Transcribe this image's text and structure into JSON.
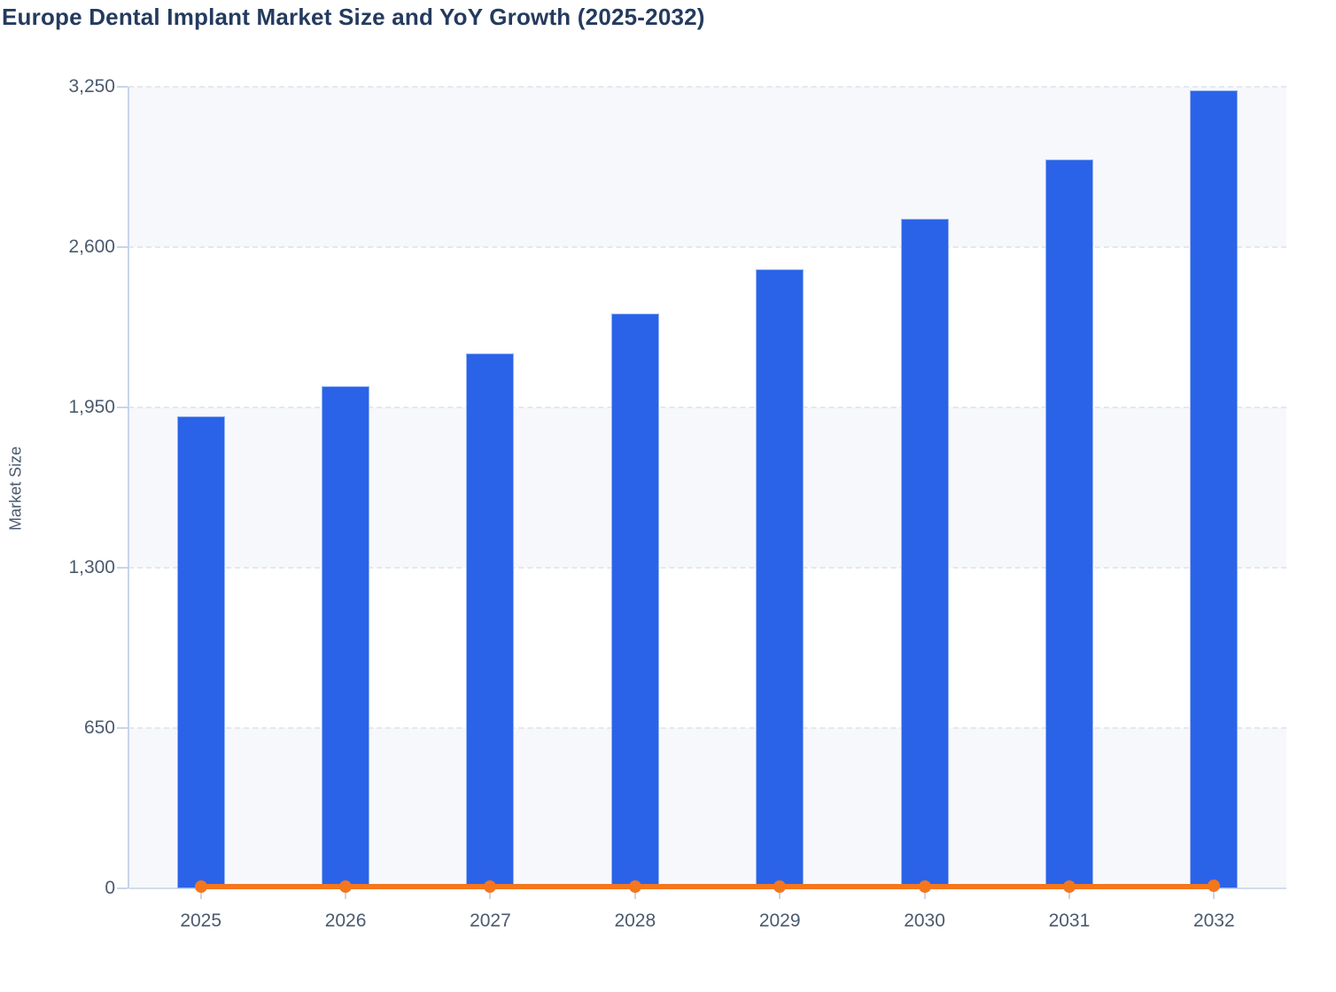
{
  "title": "Europe Dental Implant Market Size and YoY Growth (2025-2032)",
  "chart_data": {
    "type": "combo",
    "categories": [
      "2025",
      "2026",
      "2027",
      "2028",
      "2029",
      "2030",
      "2031",
      "2032"
    ],
    "series": [
      {
        "name": "Market Size",
        "type": "bar",
        "color": "#2a63e8",
        "values": [
          1915,
          2035,
          2170,
          2330,
          2510,
          2715,
          2955,
          3235
        ]
      },
      {
        "name": "YoY Growth",
        "type": "line",
        "color": "#f4761d",
        "values": [
          6.0,
          6.3,
          6.6,
          7.4,
          7.7,
          8.2,
          8.8,
          9.5
        ]
      }
    ],
    "title": "Europe Dental Implant Market Size and YoY Growth (2025-2032)",
    "xlabel": "",
    "ylabel": "Market Size",
    "ylim": [
      0,
      3250
    ],
    "yticks": [
      0,
      650,
      1300,
      1950,
      2600,
      3250
    ],
    "ytick_labels": [
      "0",
      "650",
      "1,300",
      "1,950",
      "2,600",
      "3,250"
    ],
    "grid": "horizontal dashed gridlines, alternating light bands between gridlines",
    "legend_position": "none"
  },
  "palette": {
    "bar": "#2a63e8",
    "line": "#f4761d",
    "title_text": "#243b5e",
    "tick_text": "#4b5a6e",
    "axis_line": "#c8d4ea",
    "gridline": "#e4e8ef",
    "band": "#f7f8fb",
    "background": "#ffffff"
  }
}
